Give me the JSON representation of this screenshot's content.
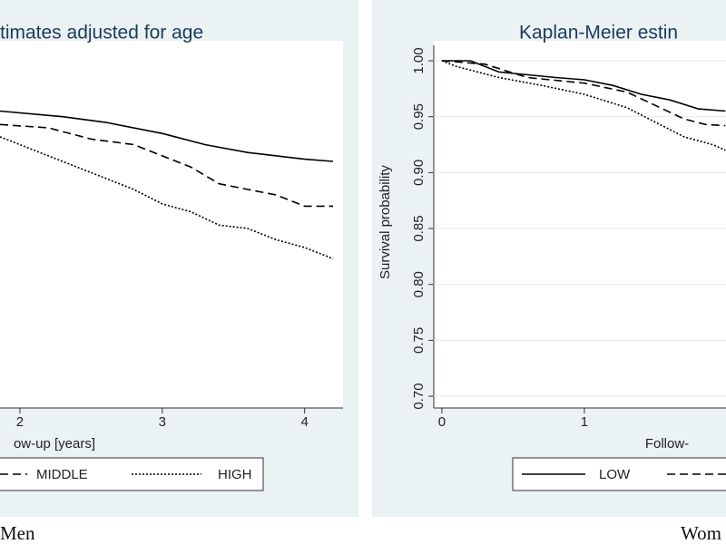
{
  "charts": [
    {
      "chart_data": {
        "type": "line",
        "title": "timates adjusted for age",
        "x_label": "ow-up [years]",
        "caption": "Men",
        "xlim": [
          1.86,
          4.27
        ],
        "xticks": [
          2,
          3,
          4
        ],
        "ylim": [
          0.6895,
          1.0138
        ],
        "series": [
          {
            "dash": "solid",
            "color": "#000000",
            "x": [
              1.86,
              2.3,
              2.6,
              3.0,
              3.3,
              3.6,
              4.0,
              4.2
            ],
            "values": [
              0.955,
              0.95,
              0.945,
              0.935,
              0.925,
              0.918,
              0.912,
              0.91
            ]
          },
          {
            "name": "MIDDLE",
            "dash": "dashed",
            "color": "#000000",
            "x": [
              1.86,
              2.2,
              2.5,
              2.8,
              3.0,
              3.2,
              3.4,
              3.6,
              3.8,
              4.0,
              4.2
            ],
            "values": [
              0.943,
              0.94,
              0.93,
              0.925,
              0.915,
              0.905,
              0.89,
              0.885,
              0.88,
              0.87,
              0.87
            ]
          },
          {
            "name": "HIGH",
            "dash": "dotted",
            "color": "#000000",
            "x": [
              1.86,
              2.2,
              2.5,
              2.8,
              3.0,
              3.2,
              3.4,
              3.6,
              3.8,
              4.0,
              4.2
            ],
            "values": [
              0.932,
              0.915,
              0.9,
              0.885,
              0.872,
              0.865,
              0.853,
              0.85,
              0.84,
              0.833,
              0.823
            ]
          }
        ]
      }
    },
    {
      "chart_data": {
        "type": "line",
        "title": "Kaplan-Meier estin",
        "x_label": "Follow-",
        "y_label": "Survival probability",
        "caption": "Wom",
        "xlim": [
          -0.057,
          1.994
        ],
        "xticks": [
          0,
          1
        ],
        "ylim": [
          0.6895,
          1.0138
        ],
        "yticks": [
          {
            "value": 1,
            "label": "1.00"
          },
          0.95,
          {
            "value": 0.9,
            "label": "0.90"
          },
          0.85,
          {
            "value": 0.8,
            "label": "0.80"
          },
          0.75,
          {
            "value": 0.7,
            "label": "0.70"
          }
        ],
        "grid": true,
        "series": [
          {
            "name": "LOW",
            "dash": "solid",
            "color": "#000000",
            "x": [
              0,
              0.2,
              0.4,
              0.8,
              1.0,
              1.2,
              1.4,
              1.6,
              1.8,
              1.99
            ],
            "values": [
              1.0,
              1.0,
              0.99,
              0.985,
              0.983,
              0.978,
              0.97,
              0.965,
              0.957,
              0.955
            ]
          },
          {
            "dash": "dashed",
            "color": "#000000",
            "x": [
              0,
              0.3,
              0.6,
              1.0,
              1.3,
              1.5,
              1.7,
              1.85,
              1.99
            ],
            "values": [
              1.0,
              0.997,
              0.985,
              0.98,
              0.972,
              0.96,
              0.948,
              0.943,
              0.942
            ]
          },
          {
            "dash": "dotted",
            "color": "#000000",
            "x": [
              0,
              0.1,
              0.4,
              0.7,
              1.0,
              1.3,
              1.5,
              1.7,
              1.9,
              1.99
            ],
            "values": [
              1.0,
              0.995,
              0.985,
              0.978,
              0.97,
              0.958,
              0.945,
              0.932,
              0.925,
              0.92
            ]
          }
        ]
      }
    }
  ]
}
